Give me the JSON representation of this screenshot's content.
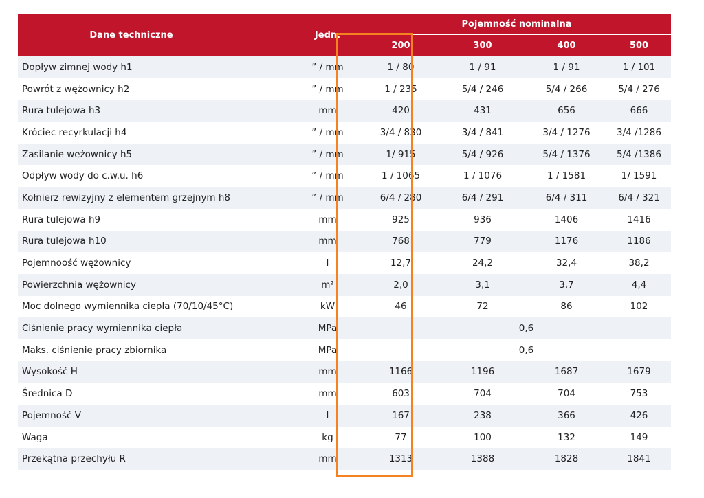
{
  "table": {
    "header": {
      "name": "Dane techniczne",
      "unit": "Jedn.",
      "group": "Pojemność nominalna",
      "capacities": [
        "200",
        "300",
        "400",
        "500"
      ]
    },
    "rows": [
      {
        "name": "Dopływ zimnej wody h1",
        "unit": "” / mm",
        "values": [
          "1 / 80",
          "1 / 91",
          "1 / 91",
          "1 / 101"
        ]
      },
      {
        "name": "Powrót z wężownicy h2",
        "unit": "” / mm",
        "values": [
          "1 / 235",
          "5/4 / 246",
          "5/4 / 266",
          "5/4 / 276"
        ]
      },
      {
        "name": "Rura tulejowa h3",
        "unit": "mm",
        "values": [
          "420",
          "431",
          "656",
          "666"
        ]
      },
      {
        "name": "Króciec recyrkulacji h4",
        "unit": "” / mm",
        "values": [
          "3/4 / 830",
          "3/4 / 841",
          "3/4 / 1276",
          "3/4 /1286"
        ]
      },
      {
        "name": "Zasilanie wężownicy h5",
        "unit": "” / mm",
        "values": [
          "1/ 915",
          "5/4 / 926",
          "5/4 / 1376",
          "5/4 /1386"
        ]
      },
      {
        "name": "Odpływ wody do c.w.u. h6",
        "unit": "” / mm",
        "values": [
          "1 / 1065",
          "1 / 1076",
          "1 / 1581",
          "1/ 1591"
        ]
      },
      {
        "name": "Kołnierz rewizyjny z elementem grzejnym h8",
        "unit": "” / mm",
        "values": [
          "6/4 / 280",
          "6/4 / 291",
          "6/4 / 311",
          "6/4 / 321"
        ]
      },
      {
        "name": "Rura tulejowa h9",
        "unit": "mm",
        "values": [
          "925",
          "936",
          "1406",
          "1416"
        ]
      },
      {
        "name": "Rura tulejowa h10",
        "unit": "mm",
        "values": [
          "768",
          "779",
          "1176",
          "1186"
        ]
      },
      {
        "name": "Pojemnoość wężownicy",
        "unit": "l",
        "values": [
          "12,7",
          "24,2",
          "32,4",
          "38,2"
        ]
      },
      {
        "name": "Powierzchnia wężownicy",
        "unit": "m²",
        "values": [
          "2,0",
          "3,1",
          "3,7",
          "4,4"
        ]
      },
      {
        "name": "Moc dolnego wymiennika ciepła (70/10/45°C)",
        "unit": "kW",
        "values": [
          "46",
          "72",
          "86",
          "102"
        ]
      },
      {
        "name": "Ciśnienie pracy wymiennika ciepła",
        "unit": "MPa",
        "merged": "0,6"
      },
      {
        "name": "Maks. ciśnienie pracy zbiornika",
        "unit": "MPa",
        "merged": "0,6"
      },
      {
        "name": "Wysokość H",
        "unit": "mm",
        "values": [
          "1166",
          "1196",
          "1687",
          "1679"
        ]
      },
      {
        "name": "Średnica D",
        "unit": "mm",
        "values": [
          "603",
          "704",
          "704",
          "753"
        ]
      },
      {
        "name": "Pojemność V",
        "unit": "l",
        "values": [
          "167",
          "238",
          "366",
          "426"
        ]
      },
      {
        "name": "Waga",
        "unit": "kg",
        "values": [
          "77",
          "100",
          "132",
          "149"
        ]
      },
      {
        "name": "Przekątna przechyłu R",
        "unit": "mm",
        "values": [
          "1313",
          "1388",
          "1828",
          "1841"
        ]
      }
    ]
  },
  "highlight": {
    "column": "200",
    "color": "#f58220"
  },
  "colors": {
    "header_bg": "#c0152b",
    "row_alt_bg": "#eef2f7"
  }
}
